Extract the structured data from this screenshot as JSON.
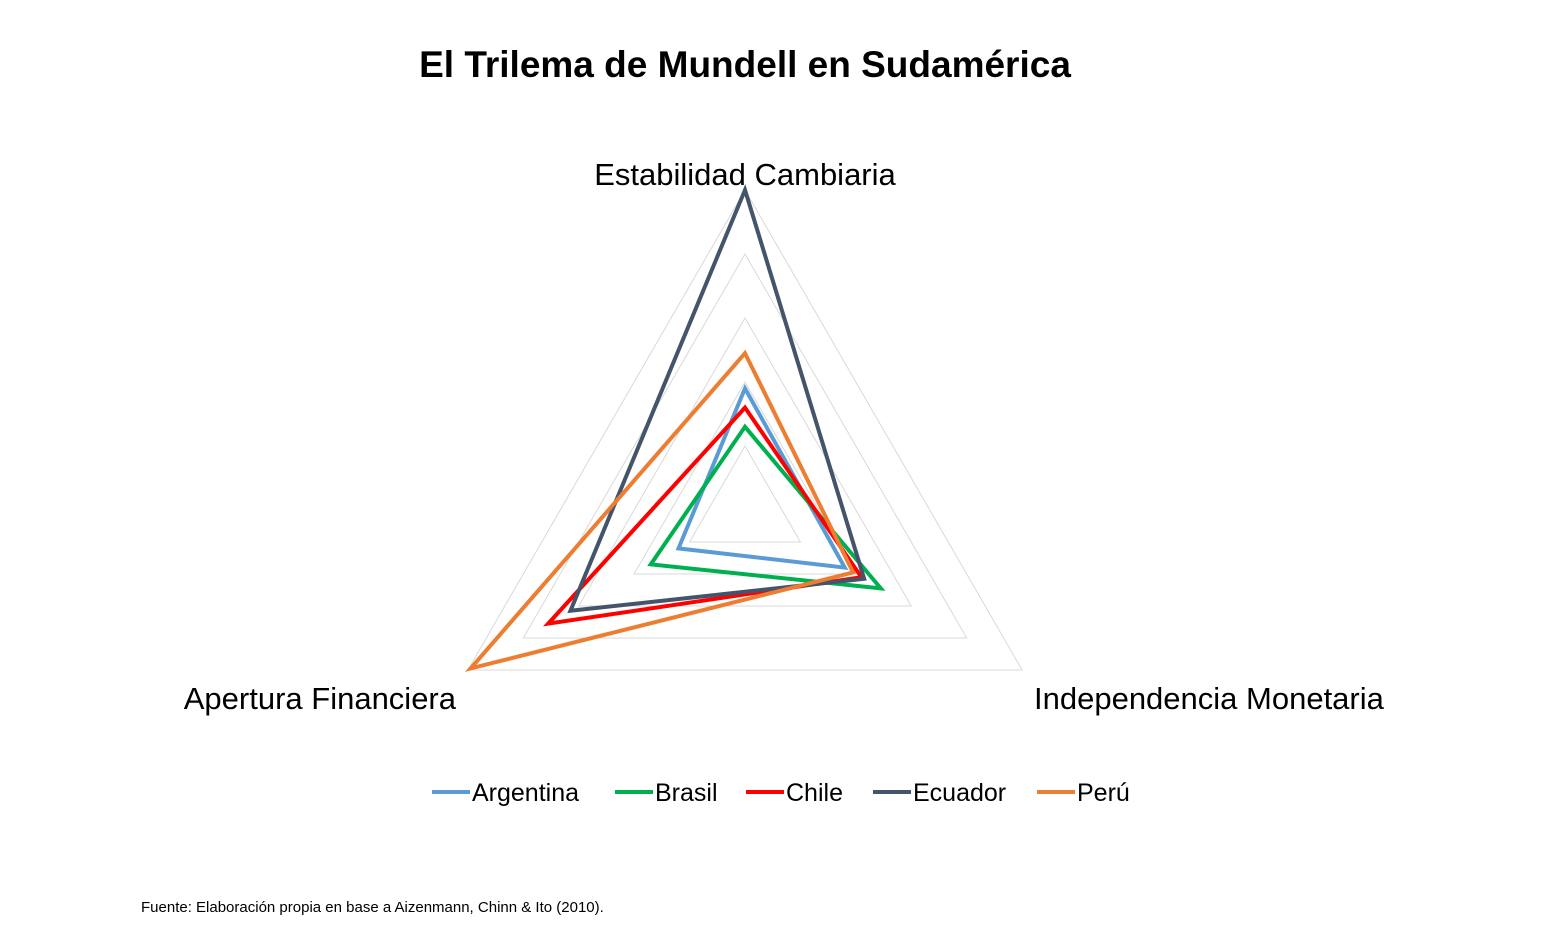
{
  "chart_data": {
    "type": "radar",
    "title": "El Trilema de Mundell en Sudamérica",
    "axes": [
      "Estabilidad Cambiaria",
      "Independencia Monetaria",
      "Apertura Financiera"
    ],
    "rlim": [
      0,
      1
    ],
    "grid_levels": [
      0.2,
      0.4,
      0.6,
      0.8,
      1.0
    ],
    "grid": true,
    "legend_position": "bottom",
    "series": [
      {
        "name": "Argentina",
        "color": "#5B9BD5",
        "values": [
          0.38,
          0.36,
          0.24
        ]
      },
      {
        "name": "Brasil",
        "color": "#00B050",
        "values": [
          0.26,
          0.49,
          0.34
        ]
      },
      {
        "name": "Chile",
        "color": "#FF0000",
        "values": [
          0.32,
          0.42,
          0.71
        ]
      },
      {
        "name": "Ecuador",
        "color": "#44546A",
        "values": [
          1.0,
          0.43,
          0.63
        ]
      },
      {
        "name": "Perú",
        "color": "#ED7D31",
        "values": [
          0.49,
          0.39,
          0.99
        ]
      }
    ]
  },
  "footer": {
    "source": "Fuente: Elaboración propia en base a Aizenmann, Chinn & Ito (2010)."
  }
}
